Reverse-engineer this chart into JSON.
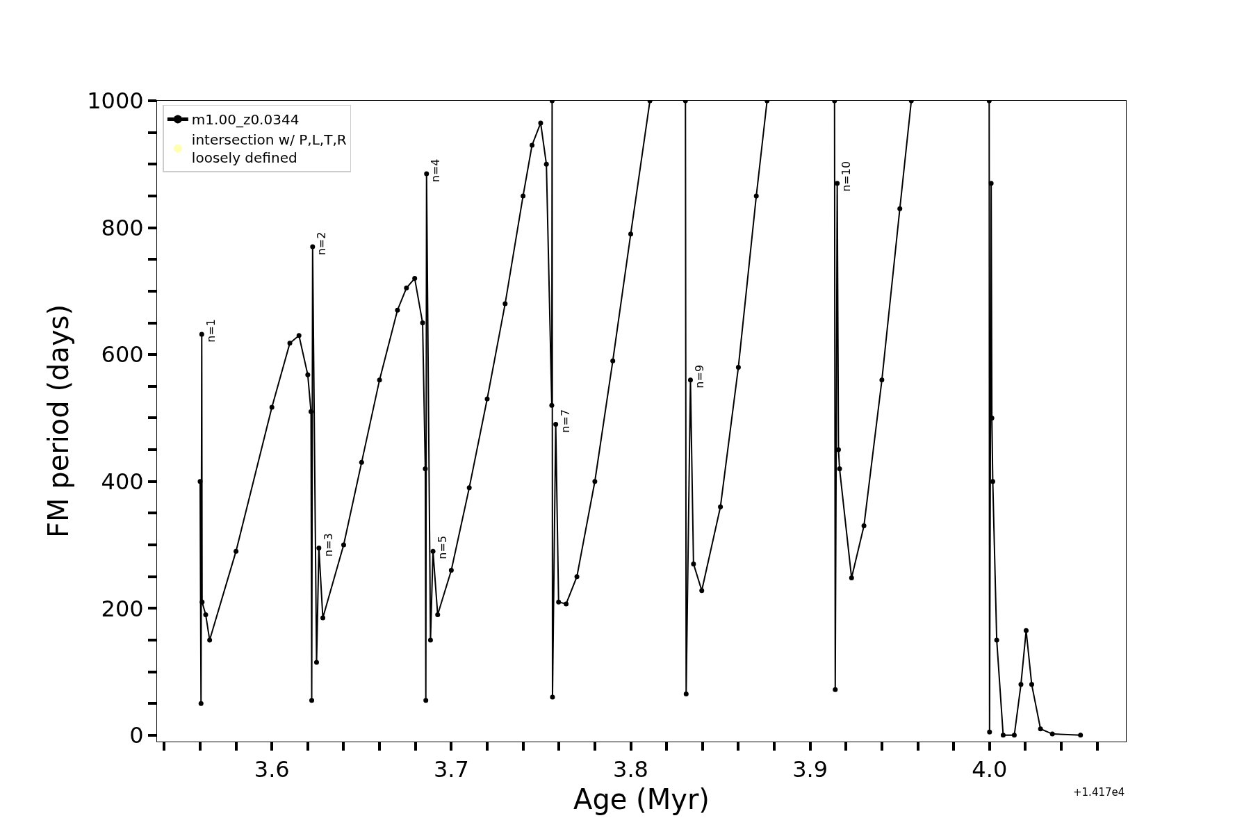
{
  "chart_data": {
    "type": "line",
    "xlabel": "Age (Myr)",
    "ylabel": "FM period (days)",
    "xlim": [
      3.536,
      4.076
    ],
    "ylim": [
      -10,
      1000
    ],
    "xticks": [
      {
        "value": 3.54,
        "label": null
      },
      {
        "value": 3.56,
        "label": null
      },
      {
        "value": 3.58,
        "label": null
      },
      {
        "value": 3.6,
        "label": "3.6"
      },
      {
        "value": 3.62,
        "label": null
      },
      {
        "value": 3.64,
        "label": null
      },
      {
        "value": 3.66,
        "label": null
      },
      {
        "value": 3.68,
        "label": null
      },
      {
        "value": 3.7,
        "label": "3.7"
      },
      {
        "value": 3.72,
        "label": null
      },
      {
        "value": 3.74,
        "label": null
      },
      {
        "value": 3.76,
        "label": null
      },
      {
        "value": 3.78,
        "label": null
      },
      {
        "value": 3.8,
        "label": "3.8"
      },
      {
        "value": 3.82,
        "label": null
      },
      {
        "value": 3.84,
        "label": null
      },
      {
        "value": 3.86,
        "label": null
      },
      {
        "value": 3.88,
        "label": null
      },
      {
        "value": 3.9,
        "label": "3.9"
      },
      {
        "value": 3.92,
        "label": null
      },
      {
        "value": 3.94,
        "label": null
      },
      {
        "value": 3.96,
        "label": null
      },
      {
        "value": 3.98,
        "label": null
      },
      {
        "value": 4.0,
        "label": "4.0"
      },
      {
        "value": 4.02,
        "label": null
      },
      {
        "value": 4.04,
        "label": null
      },
      {
        "value": 4.06,
        "label": null
      }
    ],
    "yticks": [
      0,
      {
        "value": 50,
        "label": null
      },
      {
        "value": 100,
        "label": null
      },
      {
        "value": 150,
        "label": null
      },
      200,
      {
        "value": 250,
        "label": null
      },
      {
        "value": 300,
        "label": null
      },
      {
        "value": 350,
        "label": null
      },
      400,
      {
        "value": 450,
        "label": null
      },
      {
        "value": 500,
        "label": null
      },
      {
        "value": 550,
        "label": null
      },
      600,
      {
        "value": 650,
        "label": null
      },
      {
        "value": 700,
        "label": null
      },
      {
        "value": 750,
        "label": null
      },
      800,
      {
        "value": 850,
        "label": null
      },
      {
        "value": 900,
        "label": null
      },
      {
        "value": 950,
        "label": null
      },
      1000
    ],
    "grid": false,
    "legend": "top left",
    "marker": "circle",
    "line_style": "solid",
    "series": [
      {
        "name": "m1.00_z0.0344",
        "color": "#000000",
        "x": [
          3.56,
          3.5605,
          3.5609,
          3.5611,
          3.5631,
          3.5653,
          3.58,
          3.6,
          3.61,
          3.6151,
          3.62,
          3.6218,
          3.6222,
          3.6227,
          3.6249,
          3.6262,
          3.6284,
          3.64,
          3.65,
          3.66,
          3.67,
          3.675,
          3.6796,
          3.684,
          3.6855,
          3.6858,
          3.6862,
          3.6884,
          3.6898,
          3.6924,
          3.7,
          3.71,
          3.72,
          3.73,
          3.74,
          3.745,
          3.7498,
          3.753,
          3.756,
          3.7562,
          3.7564,
          3.7582,
          3.7598,
          3.764,
          3.77,
          3.78,
          3.79,
          3.8,
          3.8107,
          3.82,
          3.8305,
          3.8309,
          3.8333,
          3.835,
          3.8396,
          3.85,
          3.86,
          3.87,
          3.876,
          3.89,
          3.9136,
          3.914,
          3.9151,
          3.9158,
          3.9164,
          3.9231,
          3.93,
          3.94,
          3.95,
          3.9564,
          3.98,
          3.9998,
          4.0,
          4.0009,
          4.0013,
          4.0018,
          4.004,
          4.0076,
          4.0138,
          4.0175,
          4.0204,
          4.0235,
          4.0284,
          4.035,
          4.0507
        ],
        "values": [
          400,
          50,
          632,
          210,
          190,
          150,
          290,
          517,
          618,
          630,
          568,
          510,
          55,
          770,
          115,
          295,
          185,
          300,
          430,
          560,
          670,
          705,
          720,
          650,
          420,
          55,
          885,
          150,
          290,
          190,
          260,
          390,
          530,
          680,
          850,
          930,
          965,
          900,
          520,
          1000,
          60,
          490,
          210,
          207,
          250,
          400,
          590,
          790,
          1000,
          null,
          1000,
          65,
          560,
          270,
          228,
          360,
          580,
          850,
          1000,
          null,
          1000,
          72,
          870,
          450,
          420,
          248,
          330,
          560,
          830,
          1000,
          null,
          1000,
          5,
          870,
          500,
          400,
          150,
          0,
          0,
          80,
          165,
          80,
          10,
          2,
          0
        ]
      },
      {
        "name": "intersection w/ P,L,T,R\nloosely defined",
        "type": "scatter",
        "color": "#ffffb3"
      }
    ],
    "annotations": [
      {
        "text": "n=1",
        "x": 3.5609,
        "y": 632
      },
      {
        "text": "n=2",
        "x": 3.6227,
        "y": 770
      },
      {
        "text": "n=3",
        "x": 3.6262,
        "y": 295
      },
      {
        "text": "n=4",
        "x": 3.6862,
        "y": 885
      },
      {
        "text": "n=5",
        "x": 3.6898,
        "y": 290
      },
      {
        "text": "n=7",
        "x": 3.7582,
        "y": 490
      },
      {
        "text": "n=9",
        "x": 3.8333,
        "y": 560
      },
      {
        "text": "n=10",
        "x": 3.9151,
        "y": 870
      },
      "+1.417e4"
    ]
  }
}
